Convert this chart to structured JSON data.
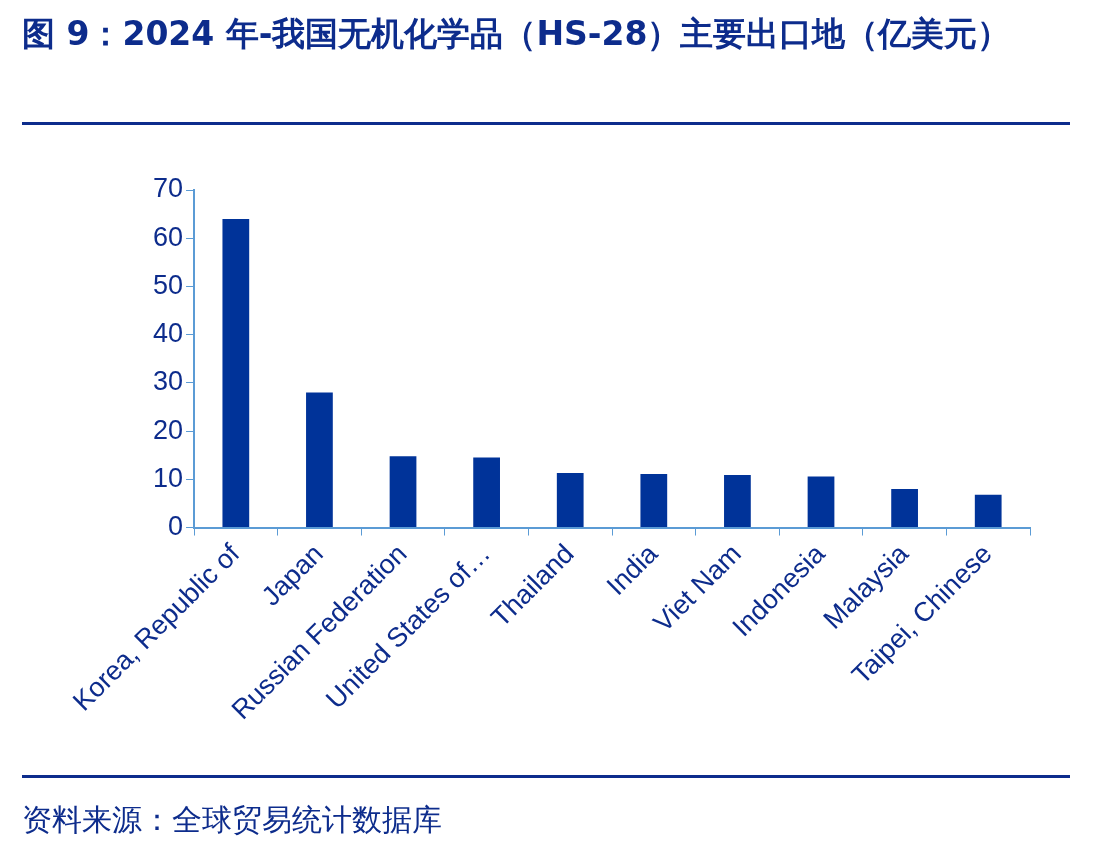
{
  "chart_data": {
    "type": "bar",
    "title": "图 9：2024 年-我国无机化学品（HS-28）主要出口地（亿美元）",
    "categories": [
      "Korea, Republic of",
      "Japan",
      "Russian Federation",
      "United States of…",
      "Thailand",
      "India",
      "Viet Nam",
      "Indonesia",
      "Malaysia",
      "Taipei, Chinese"
    ],
    "values": [
      64,
      28,
      14.8,
      14.5,
      11.3,
      11.1,
      10.9,
      10.6,
      8,
      6.8
    ],
    "color": "#003399",
    "ylim": [
      0,
      70
    ],
    "yticks": [
      0,
      10,
      20,
      30,
      40,
      50,
      60,
      70
    ],
    "grid": false,
    "legend": false,
    "annotations": [
      "资料来源：全球贸易统计数据库"
    ]
  }
}
